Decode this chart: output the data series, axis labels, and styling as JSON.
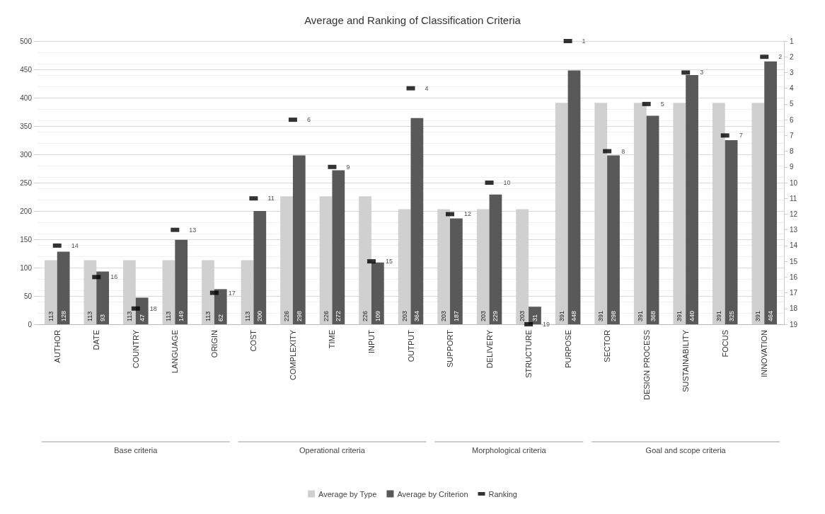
{
  "chart_data": {
    "type": "bar",
    "title": "Average and Ranking of Classification Criteria",
    "categories": [
      "AUTHOR",
      "DATE",
      "COUNTRY",
      "LANGUAGE",
      "ORIGIN",
      "COST",
      "COMPLEXITY",
      "TIME",
      "INPUT",
      "OUTPUT",
      "SUPPORT",
      "DELIVERY",
      "STRUCTURE",
      "PURPOSE",
      "SECTOR",
      "DESIGN PROCESS",
      "SUSTAINABILITY",
      "FOCUS",
      "INNOVATION"
    ],
    "series": [
      {
        "name": "Average by Type",
        "color": "#d0d0d0",
        "values": [
          113,
          113,
          113,
          113,
          113,
          113,
          226,
          226,
          226,
          203,
          203,
          203,
          203,
          391,
          391,
          391,
          391,
          391,
          391
        ]
      },
      {
        "name": "Average by Criterion",
        "color": "#595959",
        "values": [
          128,
          93,
          47,
          149,
          62,
          200,
          298,
          272,
          109,
          364,
          187,
          229,
          31,
          448,
          298,
          368,
          440,
          325,
          464
        ]
      },
      {
        "name": "Ranking",
        "type": "scatter",
        "axis": "y2",
        "color": "#000000",
        "marker": "square",
        "values": [
          14,
          16,
          18,
          13,
          17,
          11,
          6,
          9,
          15,
          4,
          12,
          10,
          19,
          1,
          8,
          5,
          3,
          7,
          2
        ]
      }
    ],
    "ylim": [
      0,
      500
    ],
    "yticks": [
      0,
      50,
      100,
      150,
      200,
      250,
      300,
      350,
      400,
      450,
      500
    ],
    "y2lim": [
      19,
      1
    ],
    "y2ticks": [
      1,
      2,
      3,
      4,
      5,
      6,
      7,
      8,
      9,
      10,
      11,
      12,
      13,
      14,
      15,
      16,
      17,
      18,
      19
    ],
    "data_labels": true,
    "grid": "y",
    "legend": "bottom",
    "annotations": [
      "Base criteria",
      "Operational criteria",
      "Morphological criteria",
      "Goal and scope criteria"
    ]
  }
}
